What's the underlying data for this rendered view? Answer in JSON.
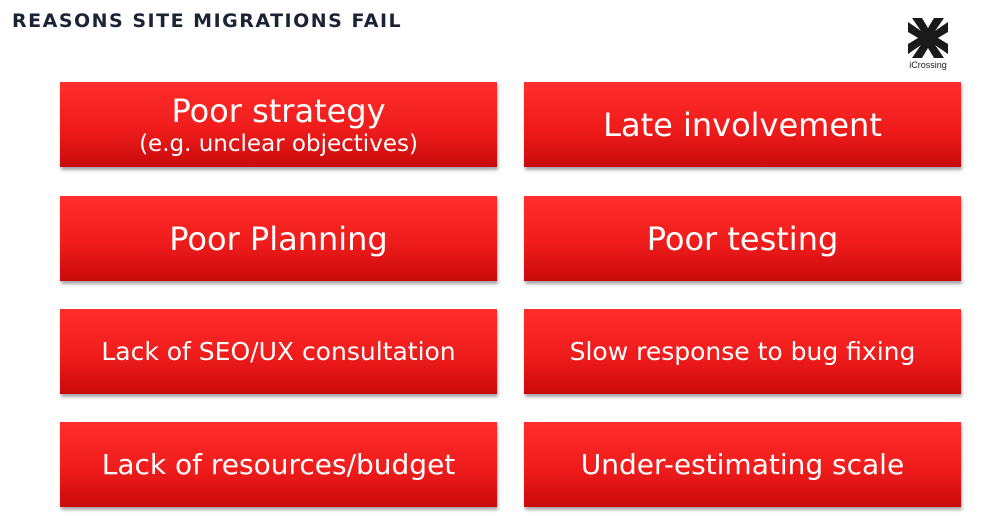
{
  "slide": {
    "title": "REASONS SITE MIGRATIONS FAIL",
    "logo_text": "iCrossing",
    "boxes": [
      {
        "line1": "Poor strategy",
        "line2": "(e.g. unclear objectives)"
      },
      {
        "line1": "Late involvement"
      },
      {
        "line1": "Poor Planning"
      },
      {
        "line1": "Poor testing"
      },
      {
        "line1": "Lack of SEO/UX consultation"
      },
      {
        "line1": "Slow response to bug fixing"
      },
      {
        "line1": "Lack of resources/budget"
      },
      {
        "line1": "Under-estimating scale"
      }
    ]
  },
  "colors": {
    "box_red": "#f01c1c",
    "title_navy": "#1c2335"
  }
}
